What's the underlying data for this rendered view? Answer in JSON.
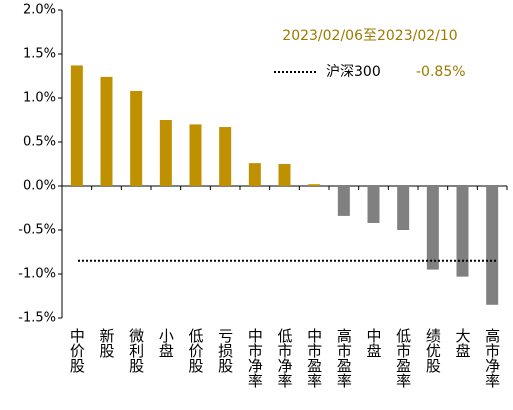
{
  "chart_data": {
    "type": "bar",
    "subtitle": "2023/02/06至2023/02/10",
    "categories": [
      "中价股",
      "新股",
      "微利股",
      "小盘",
      "低价股",
      "亏损股",
      "中市净率",
      "低市净率",
      "中市盈率",
      "高市盈率",
      "中盘",
      "低市盈率",
      "绩优股",
      "大盘",
      "高市净率"
    ],
    "values": [
      1.37,
      1.24,
      1.08,
      0.75,
      0.7,
      0.67,
      0.26,
      0.25,
      0.02,
      -0.34,
      -0.42,
      -0.5,
      -0.95,
      -1.03,
      -1.35
    ],
    "positive_color": "#bf9000",
    "negative_color": "#808080",
    "reference": {
      "name": "沪深300",
      "value": -0.85,
      "value_label": "-0.85%"
    },
    "ylim": [
      -1.5,
      2.0
    ],
    "yticks": [
      {
        "value": -1.5,
        "label": "-1.5%"
      },
      {
        "value": -1.0,
        "label": "-1.0%"
      },
      {
        "value": -0.5,
        "label": "-0.5%"
      },
      {
        "value": 0,
        "label": "0.0%"
      },
      {
        "value": 0.5,
        "label": "0.5%"
      },
      {
        "value": 1.0,
        "label": "1.0%"
      },
      {
        "value": 1.5,
        "label": "1.5%"
      },
      {
        "value": 2.0,
        "label": "2.0%"
      }
    ],
    "grid": false
  }
}
